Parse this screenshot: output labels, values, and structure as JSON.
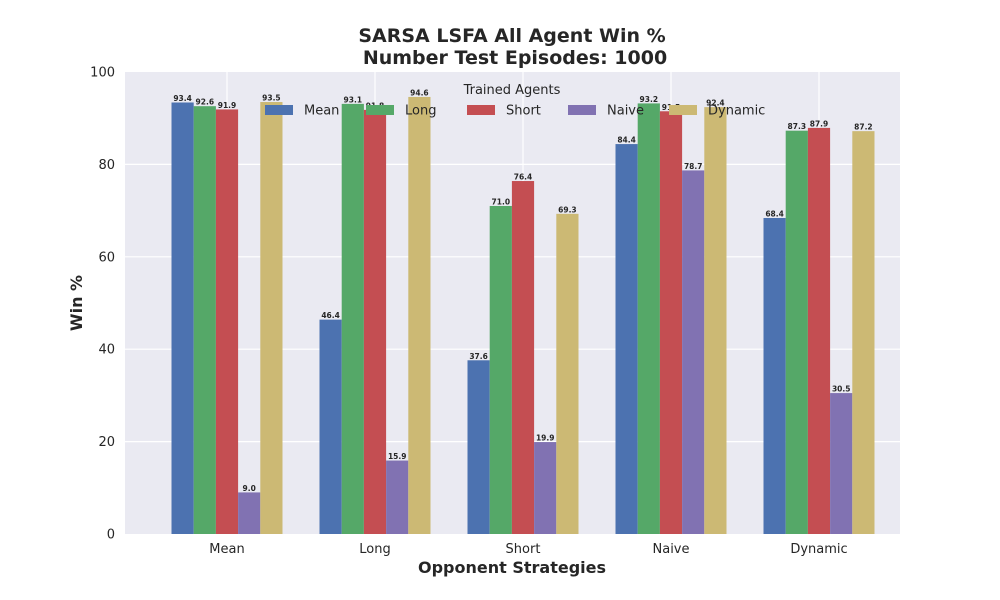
{
  "chart_data": {
    "type": "bar",
    "title": "SARSA LSFA All Agent Win %",
    "subtitle": "Number Test Episodes: 1000",
    "xlabel": "Opponent Strategies",
    "ylabel": "Win %",
    "ylim": [
      0,
      100
    ],
    "yticks": [
      0,
      20,
      40,
      60,
      80,
      100
    ],
    "grid": true,
    "legend_title": "Trained Agents",
    "legend_position": "top-center",
    "categories": [
      "Mean",
      "Long",
      "Short",
      "Naive",
      "Dynamic"
    ],
    "series": [
      {
        "name": "Mean",
        "color": "#4c72b0",
        "values": [
          93.4,
          46.4,
          37.6,
          84.4,
          68.4
        ]
      },
      {
        "name": "Long",
        "color": "#55a868",
        "values": [
          92.6,
          93.1,
          71.0,
          93.2,
          87.3
        ]
      },
      {
        "name": "Short",
        "color": "#c44e52",
        "values": [
          91.9,
          91.8,
          76.4,
          91.5,
          87.9
        ]
      },
      {
        "name": "Naive",
        "color": "#8172b2",
        "values": [
          9.0,
          15.9,
          19.9,
          78.7,
          30.5
        ]
      },
      {
        "name": "Dynamic",
        "color": "#ccb974",
        "values": [
          93.5,
          94.6,
          69.3,
          92.4,
          87.2
        ]
      }
    ],
    "background_color": "#eaeaf2",
    "grid_color": "#ffffff"
  }
}
